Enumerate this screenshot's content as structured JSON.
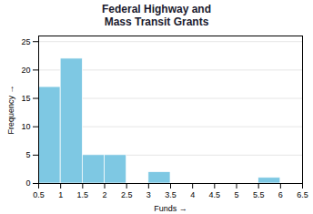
{
  "chart_data": {
    "type": "histogram",
    "title": "Federal Highway and\nMass Transit Grants",
    "x_label": "Funds",
    "y_label": "Frequency",
    "bins": [
      0.5,
      1.0,
      1.5,
      2.0,
      2.5,
      3.0,
      3.5,
      4.0,
      4.5,
      5.0,
      5.5,
      6.0,
      6.5
    ],
    "values": [
      17,
      22,
      5,
      5,
      0,
      2,
      0,
      0,
      0,
      0,
      1,
      0
    ],
    "color": "#7ec8e3",
    "xlim": [
      0.5,
      6.5
    ],
    "xticks": [
      0.5,
      1,
      1.5,
      2,
      2.5,
      3,
      3.5,
      4,
      4.5,
      5,
      5.5,
      6,
      6.5
    ],
    "ylim": [
      0,
      26
    ],
    "yticks": [
      0,
      5,
      10,
      15,
      20,
      25
    ],
    "grid": true
  }
}
